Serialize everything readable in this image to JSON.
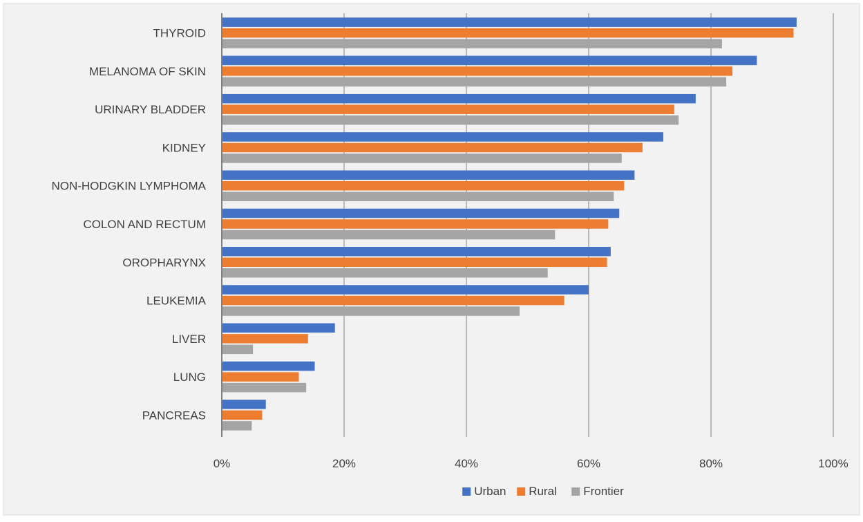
{
  "chart_data": {
    "type": "bar",
    "orientation": "horizontal",
    "title": "",
    "xlabel": "",
    "ylabel": "",
    "categories": [
      "THYROID",
      "MELANOMA OF SKIN",
      "URINARY BLADDER",
      "KIDNEY",
      "NON-HODGKIN LYMPHOMA",
      "COLON AND RECTUM",
      "OROPHARYNX",
      "LEUKEMIA",
      "LIVER",
      "LUNG",
      "PANCREAS"
    ],
    "series": [
      {
        "name": "Urban",
        "color": "#4472C4",
        "values": [
          0.94,
          0.875,
          0.775,
          0.722,
          0.675,
          0.65,
          0.636,
          0.6,
          0.185,
          0.152,
          0.072
        ]
      },
      {
        "name": "Rural",
        "color": "#ED7D31",
        "values": [
          0.935,
          0.835,
          0.74,
          0.688,
          0.658,
          0.632,
          0.63,
          0.56,
          0.141,
          0.126,
          0.066
        ]
      },
      {
        "name": "Frontier",
        "color": "#A5A5A5",
        "values": [
          0.818,
          0.825,
          0.747,
          0.654,
          0.641,
          0.545,
          0.533,
          0.487,
          0.051,
          0.138,
          0.049
        ]
      }
    ],
    "xlim": [
      0,
      1
    ],
    "x_ticks": [
      "0%",
      "20%",
      "40%",
      "60%",
      "80%",
      "100%"
    ],
    "grid": true,
    "legend": "bottom"
  }
}
